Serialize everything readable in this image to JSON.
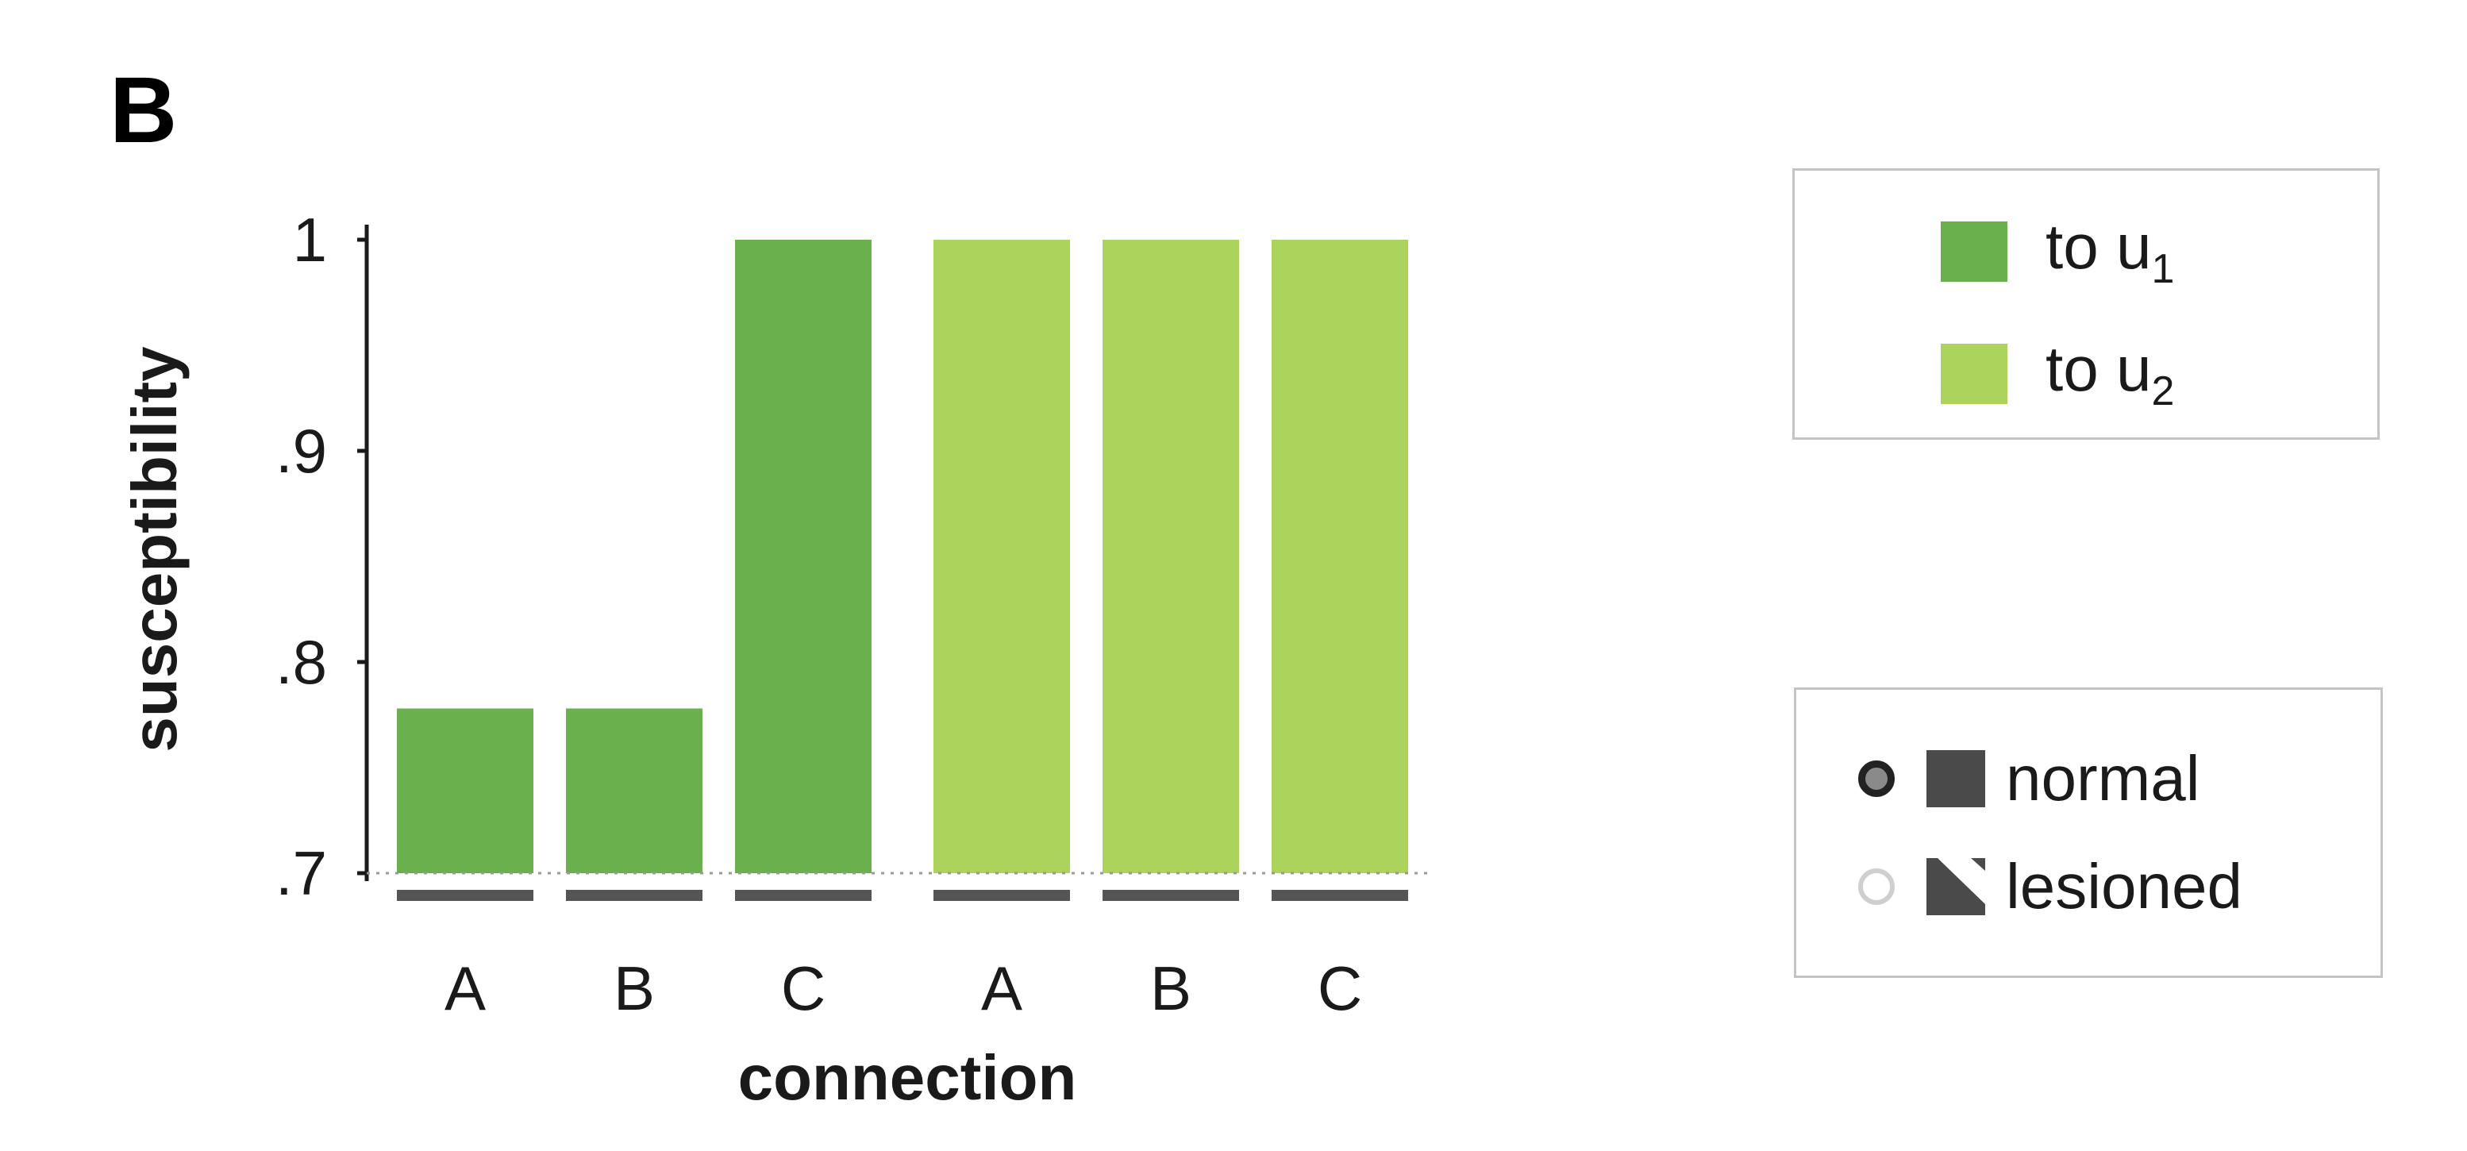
{
  "panel_label": "B",
  "chart_data": {
    "type": "bar",
    "xlabel": "connection",
    "ylabel": "susceptibility",
    "ylim": [
      0.7,
      1
    ],
    "yticks": [
      {
        "value": 0.7,
        "label": ".7"
      },
      {
        "value": 0.8,
        "label": ".8"
      },
      {
        "value": 0.9,
        "label": ".9"
      },
      {
        "value": 1.0,
        "label": "1"
      }
    ],
    "series": [
      {
        "legend_key": "u1",
        "color": "#6ab04c",
        "categories": [
          "A",
          "B",
          "C"
        ],
        "values": [
          0.778,
          0.778,
          1.0
        ]
      },
      {
        "legend_key": "u2",
        "color": "#acd35c",
        "categories": [
          "A",
          "B",
          "C"
        ],
        "values": [
          1.0,
          1.0,
          1.0
        ]
      }
    ],
    "baseline_marker_color": "#555555",
    "grid": false
  },
  "legend_series": [
    {
      "prefix": "to u",
      "subscript": "1",
      "color": "#6ab04c"
    },
    {
      "prefix": "to u",
      "subscript": "2",
      "color": "#acd35c"
    }
  ],
  "legend_status": [
    {
      "label": "normal",
      "marker": "filled-circle-square"
    },
    {
      "label": "lesioned",
      "marker": "open-circle-hatched-square"
    }
  ]
}
